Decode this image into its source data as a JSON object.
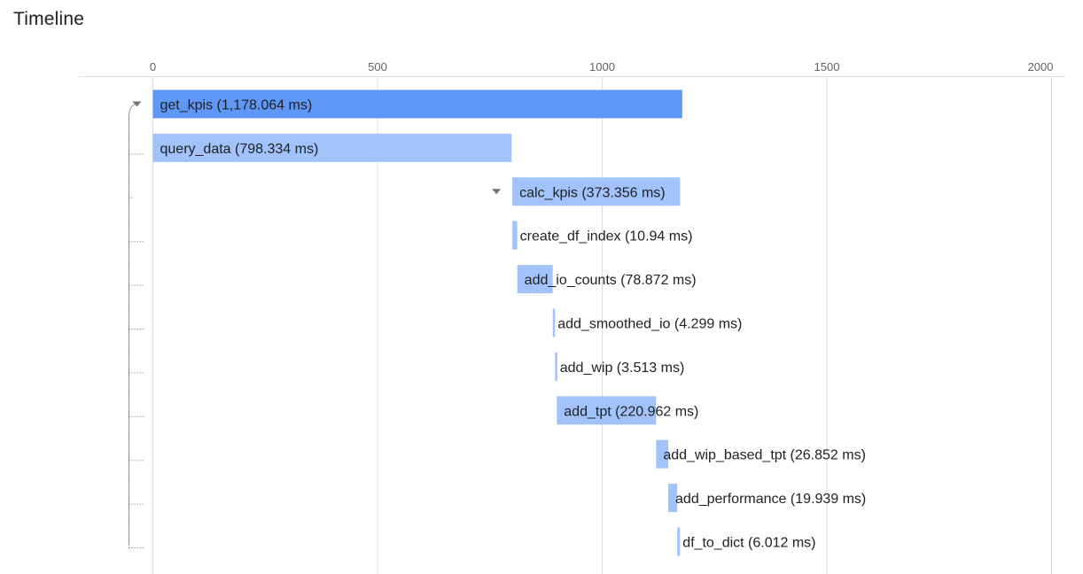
{
  "title": "Timeline",
  "chart_data": {
    "type": "bar",
    "title": "Timeline",
    "xlabel": "",
    "ylabel": "",
    "xlim": [
      0,
      2000
    ],
    "x_ticks": [
      "0",
      "500",
      "1000",
      "1500",
      "2000"
    ],
    "grid": true,
    "colors": {
      "root": "#5e97f6",
      "child": "#a1c2fa",
      "grid": "#dadce0"
    },
    "spans": [
      {
        "name": "get_kpis",
        "label": "get_kpis (1,178.064 ms)",
        "start": 0,
        "duration": 1178.064,
        "depth": 0,
        "expandable": true
      },
      {
        "name": "query_data",
        "label": "query_data (798.334 ms)",
        "start": 0,
        "duration": 798.334,
        "depth": 1,
        "expandable": false
      },
      {
        "name": "calc_kpis",
        "label": "calc_kpis (373.356 ms)",
        "start": 800,
        "duration": 373.356,
        "depth": 1,
        "expandable": true
      },
      {
        "name": "create_df_index",
        "label": "create_df_index (10.94 ms)",
        "start": 800,
        "duration": 10.94,
        "depth": 2,
        "expandable": false
      },
      {
        "name": "add_io_counts",
        "label": "add_io_counts (78.872 ms)",
        "start": 811,
        "duration": 78.872,
        "depth": 2,
        "expandable": false
      },
      {
        "name": "add_smoothed_io",
        "label": "add_smoothed_io (4.299 ms)",
        "start": 890,
        "duration": 4.299,
        "depth": 2,
        "expandable": false
      },
      {
        "name": "add_wip",
        "label": "add_wip (3.513 ms)",
        "start": 895,
        "duration": 3.513,
        "depth": 2,
        "expandable": false
      },
      {
        "name": "add_tpt",
        "label": "add_tpt (220.962 ms)",
        "start": 899,
        "duration": 220.962,
        "depth": 2,
        "expandable": false
      },
      {
        "name": "add_wip_based_tpt",
        "label": "add_wip_based_tpt (26.852 ms)",
        "start": 1120,
        "duration": 26.852,
        "depth": 2,
        "expandable": false
      },
      {
        "name": "add_performance",
        "label": "add_performance (19.939 ms)",
        "start": 1147,
        "duration": 19.939,
        "depth": 2,
        "expandable": false
      },
      {
        "name": "df_to_dict",
        "label": "df_to_dict (6.012 ms)",
        "start": 1167,
        "duration": 6.012,
        "depth": 2,
        "expandable": false
      }
    ]
  }
}
